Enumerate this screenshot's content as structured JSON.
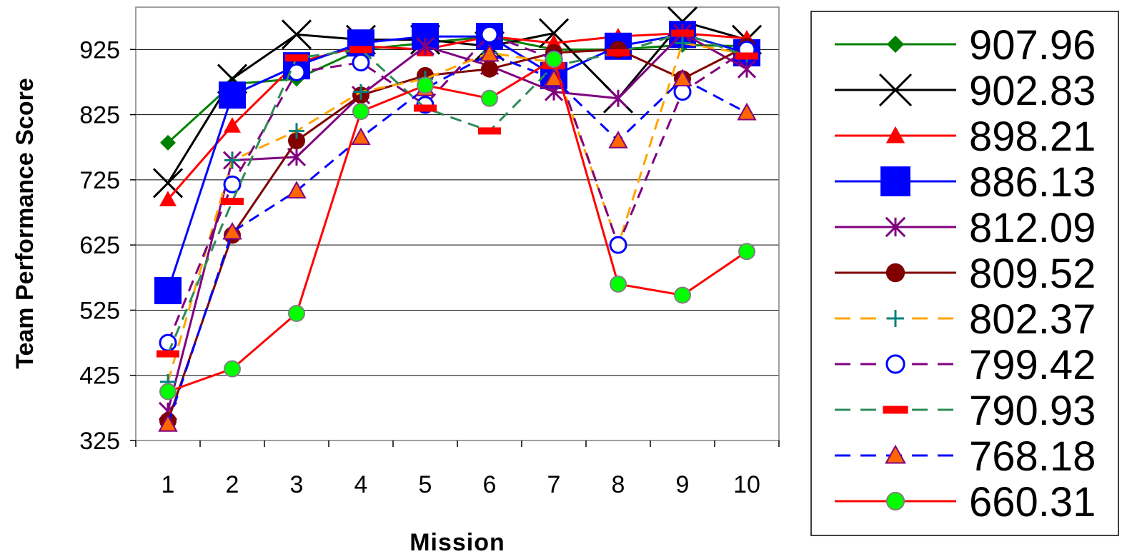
{
  "chart_data": {
    "type": "line",
    "title": "",
    "xlabel": "Mission",
    "ylabel": "Team Performance Score",
    "categories": [
      "1",
      "2",
      "3",
      "4",
      "5",
      "6",
      "7",
      "8",
      "9",
      "10"
    ],
    "yticks": [
      "925",
      "825",
      "725",
      "625",
      "525",
      "425",
      "325"
    ],
    "ylim": [
      325,
      990
    ],
    "grid": "horizontal",
    "legend_position": "right",
    "series": [
      {
        "name": "907.96",
        "color": "#008000",
        "marker": "diamond",
        "dash": "solid",
        "values": [
          782,
          872,
          880,
          925,
          935,
          945,
          925,
          925,
          932,
          930
        ]
      },
      {
        "name": "902.83",
        "color": "#000000",
        "marker": "x",
        "dash": "solid",
        "values": [
          720,
          880,
          948,
          940,
          940,
          930,
          950,
          850,
          968,
          940
        ]
      },
      {
        "name": "898.21",
        "color": "#ff0000",
        "marker": "triangle",
        "dash": "solid",
        "values": [
          695,
          808,
          905,
          930,
          925,
          945,
          935,
          945,
          950,
          942
        ]
      },
      {
        "name": "886.13",
        "color": "#0000ff",
        "marker": "square",
        "dash": "solid",
        "values": [
          555,
          855,
          900,
          935,
          945,
          945,
          885,
          930,
          948,
          920
        ]
      },
      {
        "name": "812.09",
        "color": "#800080",
        "marker": "asterisk",
        "dash": "solid",
        "values": [
          370,
          755,
          760,
          855,
          930,
          900,
          860,
          850,
          950,
          895
        ]
      },
      {
        "name": "809.52",
        "color": "#800000",
        "marker": "circle",
        "dash": "solid",
        "values": [
          355,
          640,
          785,
          855,
          885,
          895,
          920,
          925,
          880,
          930
        ]
      },
      {
        "name": "802.37",
        "color": "#ffa500",
        "marker": "plus",
        "dash": "dashed",
        "markerColor": "#008080",
        "values": [
          415,
          755,
          800,
          860,
          880,
          920,
          905,
          625,
          935,
          918
        ]
      },
      {
        "name": "799.42",
        "color": "#800080",
        "marker": "open-circle",
        "dash": "dashed",
        "markerColor": "#0000ff",
        "values": [
          475,
          718,
          890,
          905,
          840,
          948,
          910,
          625,
          860,
          925
        ]
      },
      {
        "name": "790.93",
        "color": "#2e8b57",
        "marker": "dash",
        "dash": "dashed",
        "markerColor": "#ff0000",
        "values": [
          458,
          692,
          912,
          925,
          835,
          800,
          900,
          920,
          950,
          915
        ]
      },
      {
        "name": "768.18",
        "color": "#0000ff",
        "marker": "triangle-fill",
        "dash": "dashed",
        "markerColor": "#ff6600",
        "values": [
          350,
          645,
          708,
          790,
          865,
          918,
          880,
          785,
          880,
          828
        ]
      },
      {
        "name": "660.31",
        "color": "#ff0000",
        "marker": "green-circle",
        "dash": "solid",
        "markerColor": "#00ff00",
        "values": [
          400,
          435,
          520,
          830,
          870,
          850,
          910,
          565,
          548,
          615
        ]
      }
    ]
  }
}
